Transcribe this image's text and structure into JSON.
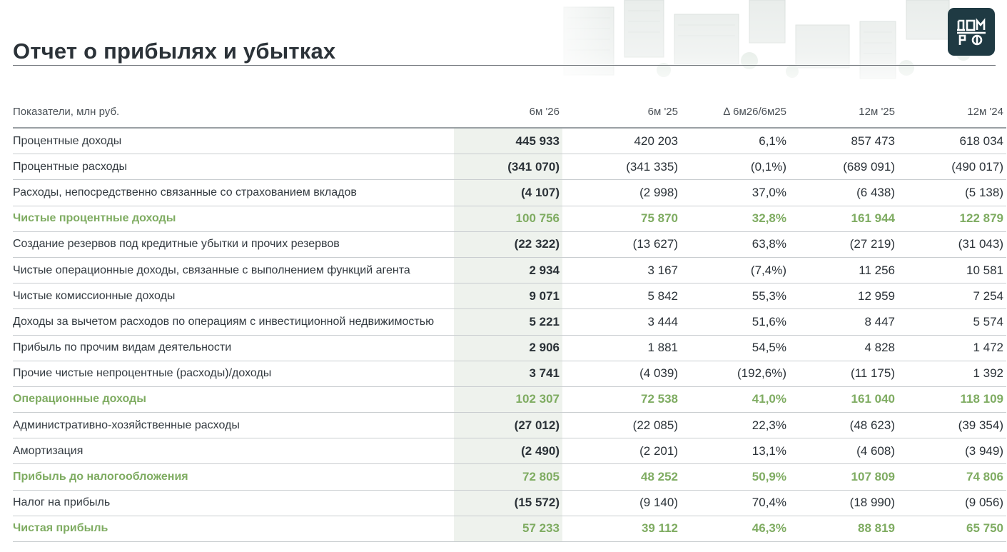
{
  "header": {
    "title": "Отчет о прибылях и убытках",
    "logo_text": "ДОМ РФ",
    "logo_color": "#1f3a43"
  },
  "table": {
    "columns": [
      "Показатели, млн руб.",
      "6м '26",
      "6м '25",
      "∆ 6м26/6м25",
      "12м '25",
      "12м '24"
    ],
    "highlight_color": "#eef2ed",
    "total_color": "#7fac62",
    "rows": [
      {
        "label": "Процентные доходы",
        "total": false,
        "values": [
          "445 933",
          "420 203",
          "6,1%",
          "857 473",
          "618 034"
        ]
      },
      {
        "label": "Процентные расходы",
        "total": false,
        "values": [
          "(341 070)",
          "(341 335)",
          "(0,1%)",
          "(689 091)",
          "(490 017)"
        ]
      },
      {
        "label": "Расходы, непосредственно связанные со страхованием вкладов",
        "total": false,
        "values": [
          "(4 107)",
          "(2 998)",
          "37,0%",
          "(6 438)",
          "(5 138)"
        ]
      },
      {
        "label": "Чистые процентные доходы",
        "total": true,
        "values": [
          "100 756",
          "75 870",
          "32,8%",
          "161 944",
          "122 879"
        ]
      },
      {
        "label": "Создание резервов под кредитные убытки и прочих резервов",
        "total": false,
        "values": [
          "(22 322)",
          "(13 627)",
          "63,8%",
          "(27 219)",
          "(31 043)"
        ]
      },
      {
        "label": "Чистые операционные доходы, связанные с выполнением функций агента",
        "total": false,
        "values": [
          "2 934",
          "3 167",
          "(7,4%)",
          "11 256",
          "10 581"
        ]
      },
      {
        "label": "Чистые комиссионные доходы",
        "total": false,
        "values": [
          "9 071",
          "5 842",
          "55,3%",
          "12 959",
          "7 254"
        ]
      },
      {
        "label": "Доходы за вычетом расходов по операциям с инвестиционной недвижимостью",
        "total": false,
        "values": [
          "5 221",
          "3 444",
          "51,6%",
          "8 447",
          "5 574"
        ]
      },
      {
        "label": "Прибыль по прочим видам деятельности",
        "total": false,
        "values": [
          "2 906",
          "1 881",
          "54,5%",
          "4 828",
          "1 472"
        ]
      },
      {
        "label": "Прочие чистые непроцентные (расходы)/доходы",
        "total": false,
        "values": [
          "3 741",
          "(4 039)",
          "(192,6%)",
          "(11 175)",
          "1 392"
        ]
      },
      {
        "label": "Операционные доходы",
        "total": true,
        "values": [
          "102 307",
          "72 538",
          "41,0%",
          "161 040",
          "118 109"
        ]
      },
      {
        "label": "Административно-хозяйственные расходы",
        "total": false,
        "values": [
          "(27 012)",
          "(22 085)",
          "22,3%",
          "(48 623)",
          "(39 354)"
        ]
      },
      {
        "label": "Амортизация",
        "total": false,
        "values": [
          "(2 490)",
          "(2 201)",
          "13,1%",
          "(4 608)",
          "(3 949)"
        ]
      },
      {
        "label": "Прибыль до налогообложения",
        "total": true,
        "values": [
          "72 805",
          "48 252",
          "50,9%",
          "107 809",
          "74 806"
        ]
      },
      {
        "label": "Налог на прибыль",
        "total": false,
        "values": [
          "(15 572)",
          "(9 140)",
          "70,4%",
          "(18 990)",
          "(9 056)"
        ]
      },
      {
        "label": "Чистая прибыль",
        "total": true,
        "values": [
          "57 233",
          "39 112",
          "46,3%",
          "88 819",
          "65 750"
        ]
      }
    ]
  }
}
